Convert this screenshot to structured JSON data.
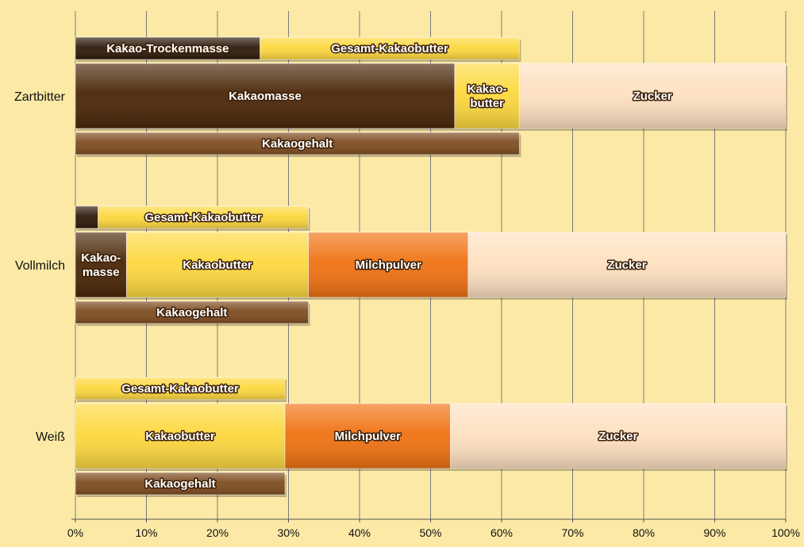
{
  "chart_data": {
    "type": "bar",
    "orientation": "horizontal",
    "stacked": true,
    "xlim": [
      0,
      100
    ],
    "x_ticks": [
      "0%",
      "10%",
      "20%",
      "30%",
      "40%",
      "50%",
      "60%",
      "70%",
      "80%",
      "90%",
      "100%"
    ],
    "grid": "vertical",
    "colors": {
      "cocoa_solids": "#2e1b0c",
      "cocoa_mass": "#4a2608",
      "cocoa_butter": "#fdd83e",
      "milk_powder": "#f07212",
      "sugar": "#fee0c0",
      "cocoa_content": "#7e4c20"
    },
    "categories": [
      {
        "name": "Zartbitter",
        "top": [
          {
            "label": "Kakao-Trockenmasse",
            "start": 0,
            "end": 26,
            "color": "cocoa_solids"
          },
          {
            "label": "Gesamt-Kakaobutter",
            "start": 26,
            "end": 62.5,
            "color": "cocoa_butter"
          }
        ],
        "main": [
          {
            "label": "Kakaomasse",
            "start": 0,
            "end": 53.4,
            "color": "cocoa_mass"
          },
          {
            "label": "Kakao-\nbutter",
            "start": 53.4,
            "end": 62.5,
            "color": "cocoa_butter"
          },
          {
            "label": "Zucker",
            "start": 62.5,
            "end": 100,
            "color": "sugar"
          }
        ],
        "bottom": [
          {
            "label": "Kakaogehalt",
            "start": 0,
            "end": 62.5,
            "color": "cocoa_content"
          }
        ]
      },
      {
        "name": "Vollmilch",
        "top": [
          {
            "label": "",
            "start": 0,
            "end": 3.2,
            "color": "cocoa_solids"
          },
          {
            "label": "Gesamt-Kakaobutter",
            "start": 3.2,
            "end": 32.8,
            "color": "cocoa_butter"
          }
        ],
        "main": [
          {
            "label": "Kakao-\nmasse",
            "start": 0,
            "end": 7.2,
            "color": "cocoa_mass"
          },
          {
            "label": "Kakaobutter",
            "start": 7.2,
            "end": 32.8,
            "color": "cocoa_butter"
          },
          {
            "label": "Milchpulver",
            "start": 32.8,
            "end": 55.3,
            "color": "milk_powder"
          },
          {
            "label": "Zucker",
            "start": 55.3,
            "end": 100,
            "color": "sugar"
          }
        ],
        "bottom": [
          {
            "label": "Kakaogehalt",
            "start": 0,
            "end": 32.8,
            "color": "cocoa_content"
          }
        ]
      },
      {
        "name": "Weiß",
        "top": [
          {
            "label": "Gesamt-Kakaobutter",
            "start": 0,
            "end": 29.5,
            "color": "cocoa_butter"
          }
        ],
        "main": [
          {
            "label": "Kakaobutter",
            "start": 0,
            "end": 29.5,
            "color": "cocoa_butter"
          },
          {
            "label": "Milchpulver",
            "start": 29.5,
            "end": 52.8,
            "color": "milk_powder"
          },
          {
            "label": "Zucker",
            "start": 52.8,
            "end": 100,
            "color": "sugar"
          }
        ],
        "bottom": [
          {
            "label": "Kakaogehalt",
            "start": 0,
            "end": 29.5,
            "color": "cocoa_content"
          }
        ]
      }
    ]
  }
}
